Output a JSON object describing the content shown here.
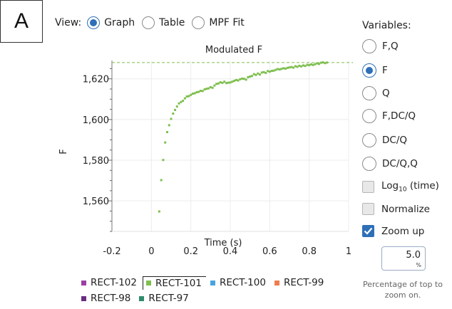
{
  "panel_label": "A",
  "view": {
    "label": "View:",
    "options": [
      {
        "label": "Graph",
        "selected": true
      },
      {
        "label": "Table",
        "selected": false
      },
      {
        "label": "MPF Fit",
        "selected": false
      }
    ]
  },
  "variables": {
    "title": "Variables:",
    "options": [
      {
        "label": "F,Q",
        "selected": false
      },
      {
        "label": "F",
        "selected": true
      },
      {
        "label": "Q",
        "selected": false
      },
      {
        "label": "F,DC/Q",
        "selected": false
      },
      {
        "label": "DC/Q",
        "selected": false
      },
      {
        "label": "DC/Q,Q",
        "selected": false
      }
    ]
  },
  "checkboxes": {
    "log": {
      "label_main": "Log",
      "label_sub": "10",
      "label_tail": " (time)",
      "checked": false
    },
    "normalize": {
      "label": "Normalize",
      "checked": false
    },
    "zoom": {
      "label": "Zoom up",
      "checked": true
    }
  },
  "zoom_input": {
    "value": "5.0",
    "unit": "%",
    "help": "Percentage of top to zoom on."
  },
  "legend": [
    {
      "name": "RECT-102",
      "color": "#9b3fa3",
      "selected": false
    },
    {
      "name": "RECT-101",
      "color": "#7fbf4f",
      "selected": true
    },
    {
      "name": "RECT-100",
      "color": "#4aa3df",
      "selected": false
    },
    {
      "name": "RECT-99",
      "color": "#ee7d4e",
      "selected": false
    },
    {
      "name": "RECT-98",
      "color": "#6a2d82",
      "selected": false
    },
    {
      "name": "RECT-97",
      "color": "#2e8b6b",
      "selected": false
    }
  ],
  "chart_data": {
    "type": "scatter",
    "title": "Modulated F",
    "xlabel": "Time (s)",
    "ylabel": "F",
    "xlim": [
      -0.2,
      1.0
    ],
    "ylim": [
      1545,
      1629
    ],
    "x_ticks": [
      -0.2,
      0,
      0.2,
      0.4,
      0.6,
      0.8,
      1
    ],
    "x_tick_labels": [
      "-0.2",
      "0",
      "0.2",
      "0.4",
      "0.6",
      "0.8",
      "1"
    ],
    "y_ticks": [
      1560,
      1580,
      1600,
      1620
    ],
    "y_tick_labels": [
      "1,560",
      "1,580",
      "1,600",
      "1,620"
    ],
    "grid": true,
    "reference_line": 1628,
    "point_color": "#7fbf4f",
    "series": [
      {
        "name": "RECT-101",
        "x": [
          0.04,
          0.05,
          0.06,
          0.07,
          0.08,
          0.09,
          0.1,
          0.11,
          0.12,
          0.13,
          0.14,
          0.15,
          0.16,
          0.17,
          0.18,
          0.19,
          0.2,
          0.21,
          0.22,
          0.23,
          0.24,
          0.25,
          0.26,
          0.27,
          0.28,
          0.29,
          0.3,
          0.31,
          0.32,
          0.33,
          0.34,
          0.35,
          0.36,
          0.37,
          0.38,
          0.39,
          0.4,
          0.41,
          0.42,
          0.43,
          0.44,
          0.45,
          0.46,
          0.47,
          0.48,
          0.49,
          0.5,
          0.51,
          0.52,
          0.53,
          0.54,
          0.55,
          0.56,
          0.57,
          0.58,
          0.59,
          0.6,
          0.61,
          0.62,
          0.63,
          0.64,
          0.65,
          0.66,
          0.67,
          0.68,
          0.69,
          0.7,
          0.71,
          0.72,
          0.73,
          0.74,
          0.75,
          0.76,
          0.77,
          0.78,
          0.79,
          0.8,
          0.81,
          0.82,
          0.83,
          0.84,
          0.85,
          0.86,
          0.87,
          0.88,
          0.89
        ],
        "y": [
          1554.8,
          1570.2,
          1580.1,
          1588.7,
          1593.8,
          1597.2,
          1600.3,
          1602.9,
          1604.7,
          1606.4,
          1607.9,
          1608.6,
          1609.2,
          1610.4,
          1611.3,
          1611.5,
          1612.1,
          1612.7,
          1612.9,
          1613.4,
          1613.6,
          1614.1,
          1614.0,
          1614.8,
          1615.1,
          1615.3,
          1615.9,
          1615.6,
          1616.7,
          1617.5,
          1617.7,
          1618.3,
          1618.0,
          1618.6,
          1617.9,
          1618.1,
          1618.2,
          1618.6,
          1619.0,
          1619.4,
          1619.2,
          1619.8,
          1620.1,
          1620.0,
          1619.6,
          1620.8,
          1621.1,
          1621.4,
          1622.3,
          1621.9,
          1622.6,
          1622.1,
          1623.1,
          1623.3,
          1622.9,
          1623.8,
          1623.5,
          1623.9,
          1624.0,
          1624.4,
          1624.8,
          1624.6,
          1624.9,
          1625.2,
          1625.0,
          1625.4,
          1625.6,
          1625.8,
          1625.5,
          1626.2,
          1625.9,
          1626.4,
          1626.1,
          1626.6,
          1626.3,
          1626.9,
          1626.7,
          1627.1,
          1626.8,
          1627.2,
          1627.6,
          1627.3,
          1627.9,
          1628.1,
          1627.7,
          1628.0
        ]
      }
    ]
  }
}
